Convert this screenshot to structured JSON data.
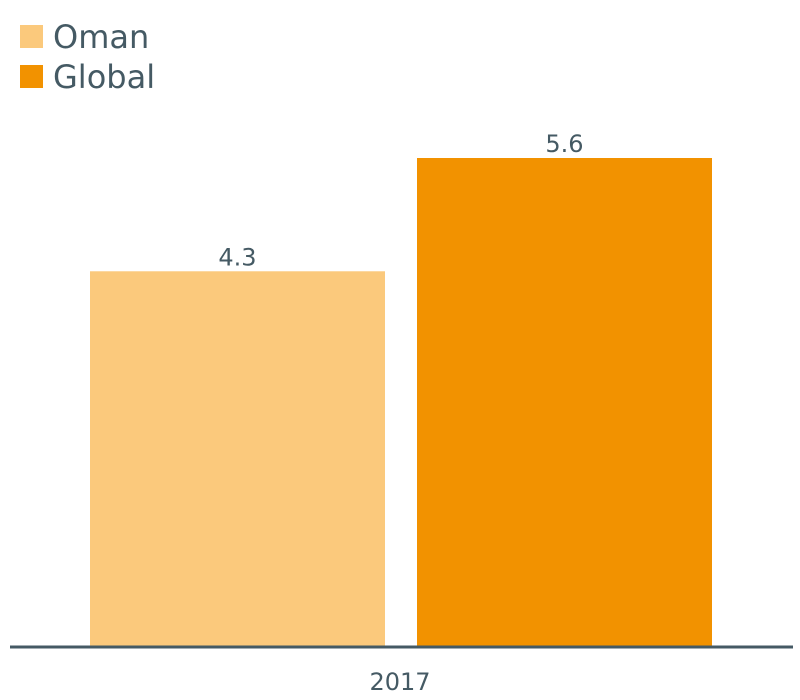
{
  "chart_data": {
    "type": "bar",
    "categories": [
      "2017"
    ],
    "series": [
      {
        "name": "Oman",
        "values": [
          4.3
        ],
        "color": "#fbc97c"
      },
      {
        "name": "Global",
        "values": [
          5.6
        ],
        "color": "#f29200"
      }
    ],
    "ylim": [
      0,
      5.6
    ],
    "grid": false,
    "legend_position": "top-left",
    "axis_color": "#455a64",
    "text_color": "#455a64"
  }
}
